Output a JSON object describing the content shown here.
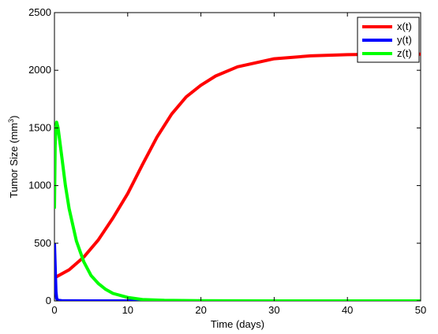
{
  "chart_data": {
    "type": "line",
    "title": "",
    "xlabel": "Time (days)",
    "ylabel": {
      "prefix": "Tumor Size (mm",
      "sup": "3",
      "suffix": ")"
    },
    "xlim": [
      0,
      50
    ],
    "ylim": [
      0,
      2500
    ],
    "xticks": [
      0,
      10,
      20,
      30,
      40,
      50
    ],
    "yticks": [
      0,
      500,
      1000,
      1500,
      2000,
      2500
    ],
    "grid": false,
    "legend_position": "top-right",
    "series": [
      {
        "name": "x(t)",
        "color": "#ff0000",
        "x": [
          0,
          2,
          4,
          6,
          8,
          10,
          12,
          14,
          16,
          18,
          20,
          22,
          25,
          30,
          35,
          40,
          45,
          50
        ],
        "y": [
          200,
          270,
          380,
          530,
          720,
          930,
          1180,
          1420,
          1620,
          1770,
          1870,
          1950,
          2030,
          2100,
          2125,
          2135,
          2140,
          2140
        ]
      },
      {
        "name": "y(t)",
        "color": "#0000ff",
        "x": [
          0,
          0.1,
          0.2,
          0.3,
          0.5,
          1,
          2,
          5,
          10,
          20,
          30,
          40,
          50
        ],
        "y": [
          500,
          300,
          80,
          20,
          5,
          2,
          1,
          0,
          0,
          0,
          0,
          0,
          0
        ]
      },
      {
        "name": "z(t)",
        "color": "#00ff00",
        "x": [
          0,
          0.1,
          0.2,
          0.3,
          0.5,
          1,
          1.5,
          2,
          3,
          4,
          5,
          6,
          7,
          8,
          10,
          12,
          15,
          20,
          30,
          40,
          50
        ],
        "y": [
          800,
          1350,
          1500,
          1550,
          1500,
          1250,
          1000,
          800,
          520,
          340,
          220,
          150,
          100,
          65,
          30,
          12,
          5,
          2,
          0,
          0,
          0
        ]
      }
    ]
  }
}
